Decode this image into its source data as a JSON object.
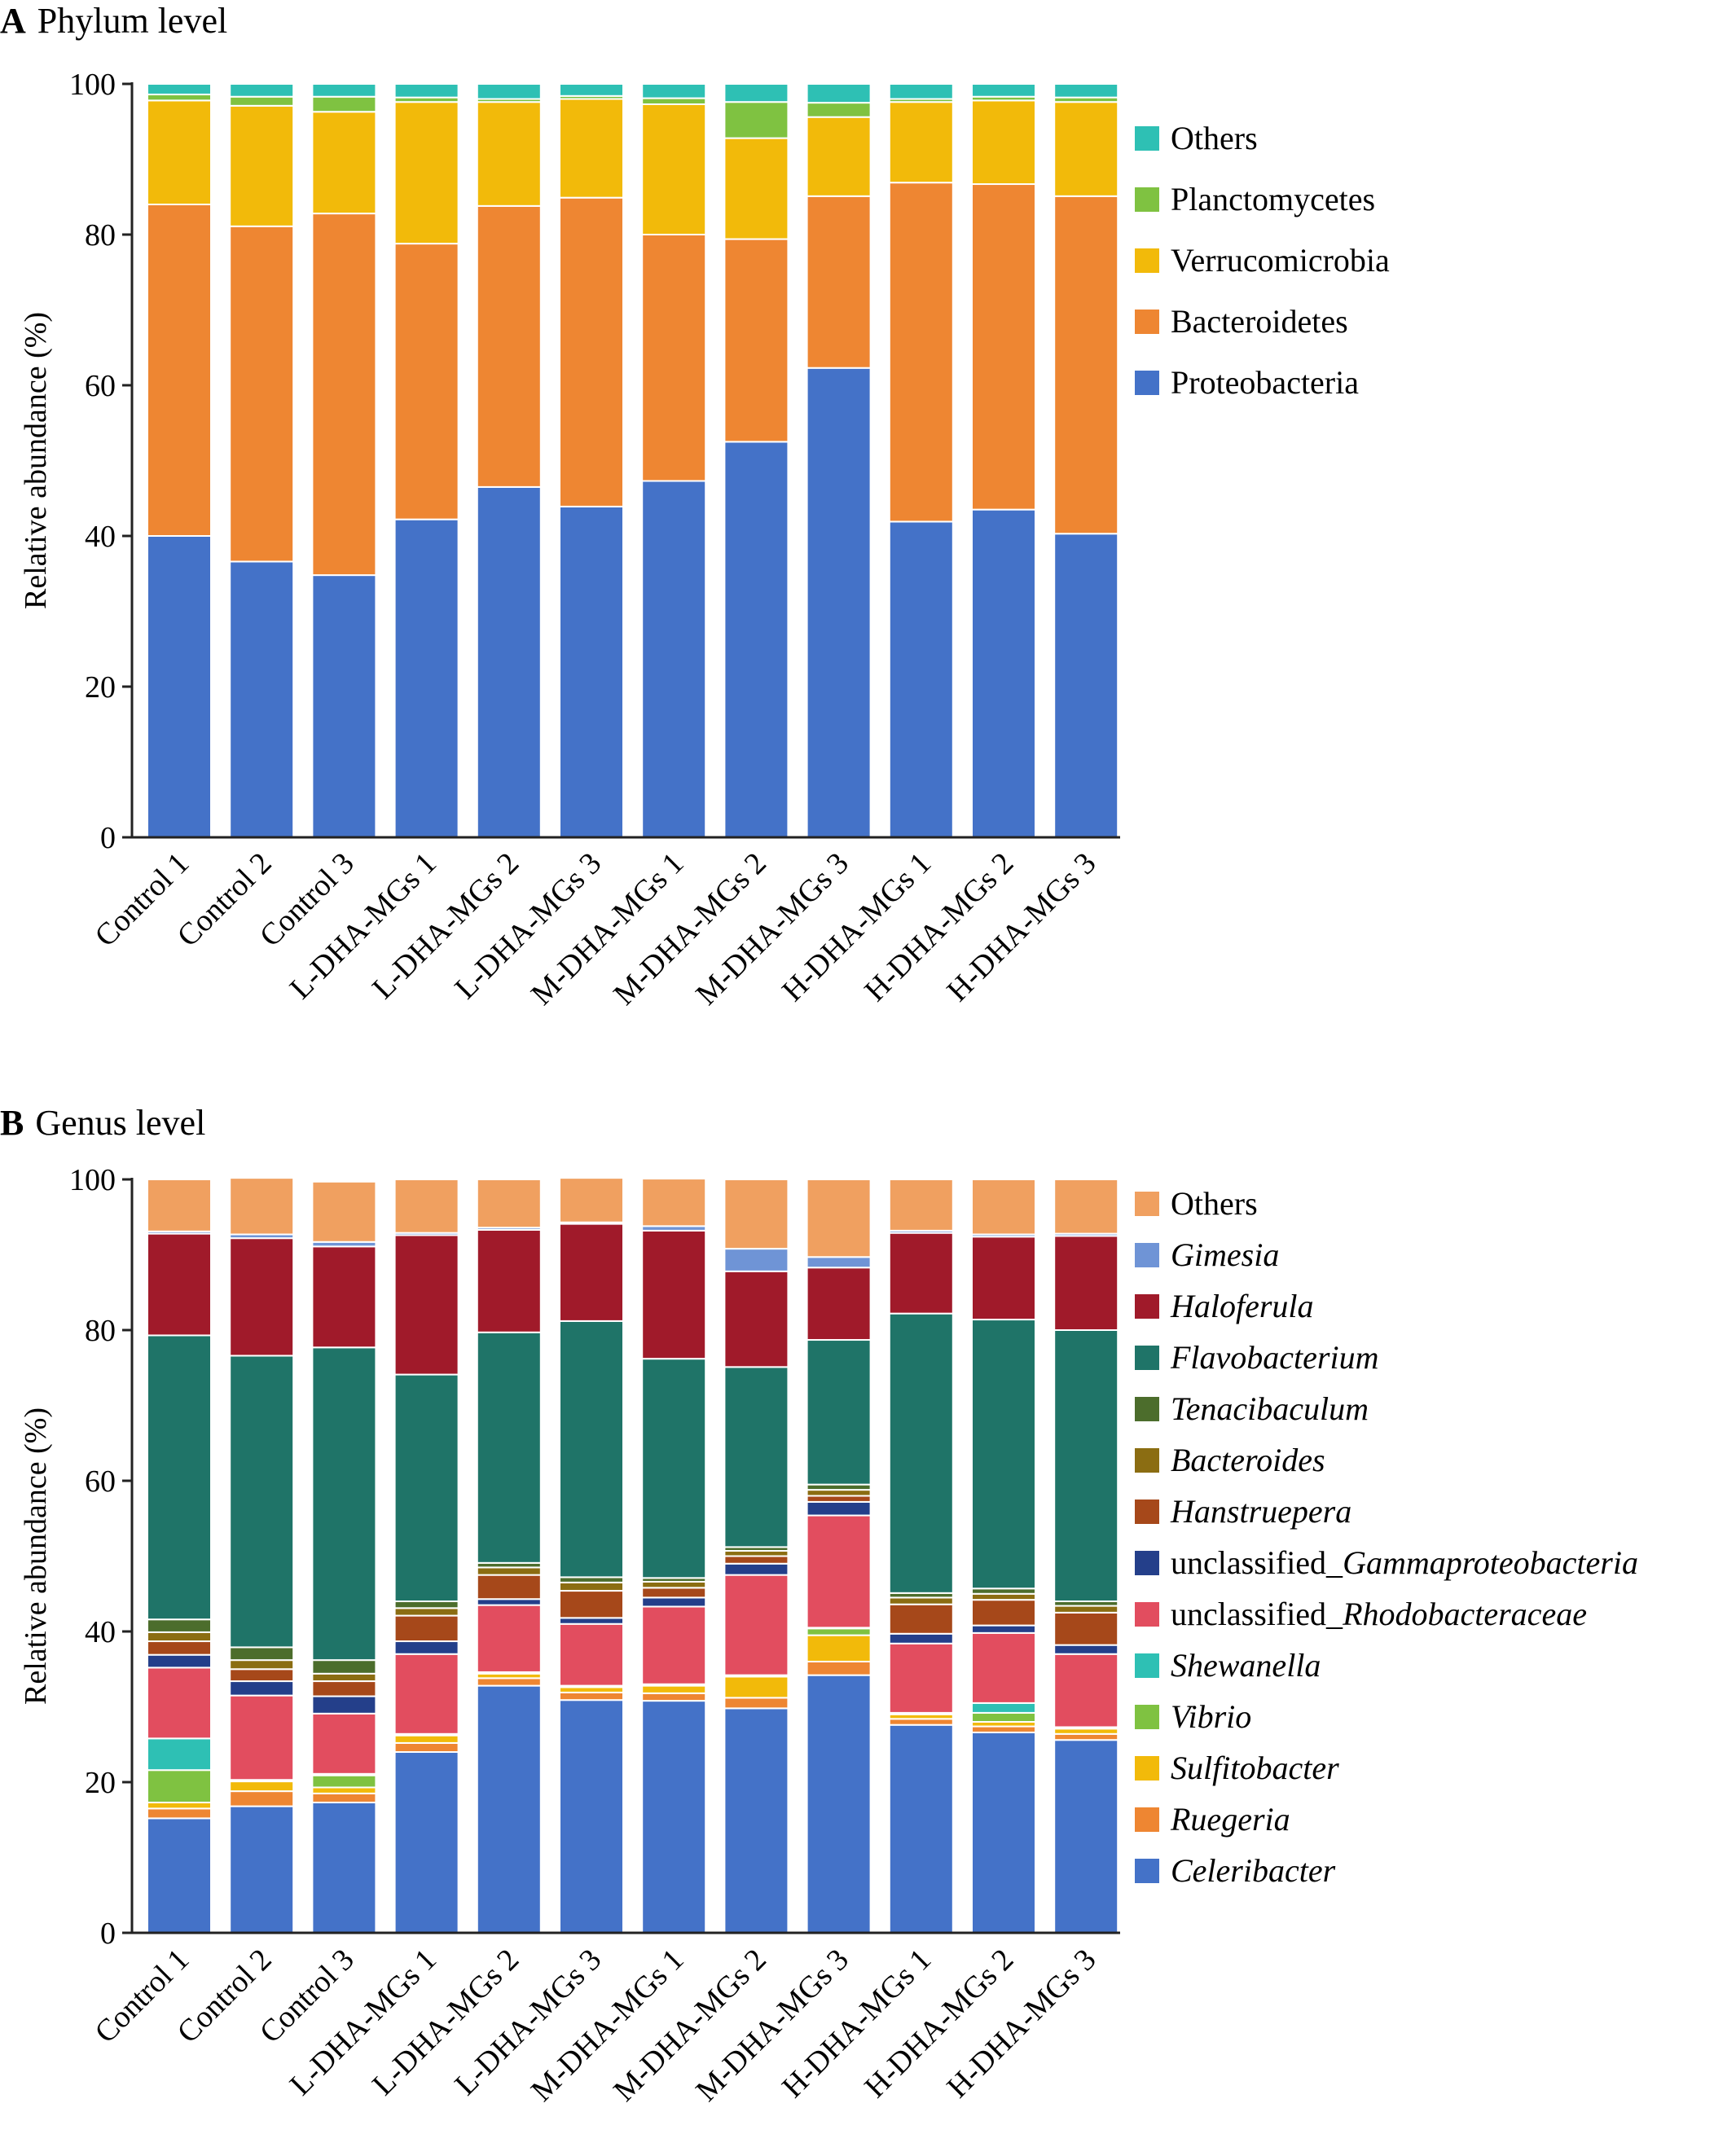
{
  "chart_data": [
    {
      "panel": "A",
      "type": "bar",
      "stacked": true,
      "title": "Phylum level",
      "xlabel": "",
      "ylabel": "Relative abundance (%)",
      "ylim": [
        0,
        100
      ],
      "yticks": [
        0,
        20,
        40,
        60,
        80,
        100
      ],
      "legend_position": "right",
      "categories": [
        "Control 1",
        "Control 2",
        "Control 3",
        "L-DHA-MGs 1",
        "L-DHA-MGs 2",
        "L-DHA-MGs 3",
        "M-DHA-MGs 1",
        "M-DHA-MGs 2",
        "M-DHA-MGs 3",
        "H-DHA-MGs 1",
        "H-DHA-MGs 2",
        "H-DHA-MGs 3"
      ],
      "series": [
        {
          "name": "Proteobacteria",
          "italic": false,
          "color": "#4472C8",
          "values": [
            40.0,
            36.6,
            34.8,
            42.2,
            46.5,
            43.9,
            47.3,
            52.5,
            62.3,
            41.9,
            43.5,
            40.3
          ]
        },
        {
          "name": "Bacteroidetes",
          "italic": false,
          "color": "#EE8632",
          "values": [
            44.0,
            44.5,
            48.0,
            36.6,
            37.3,
            41.0,
            32.7,
            26.9,
            22.8,
            45.0,
            43.2,
            44.8
          ]
        },
        {
          "name": "Verrucomicrobia",
          "italic": false,
          "color": "#F2BA0A",
          "values": [
            13.8,
            16.0,
            13.5,
            18.8,
            13.8,
            13.1,
            17.3,
            13.4,
            10.5,
            10.7,
            11.1,
            12.5
          ]
        },
        {
          "name": "Planctomycetes",
          "italic": false,
          "color": "#7FC241",
          "values": [
            0.8,
            1.2,
            2.0,
            0.6,
            0.4,
            0.4,
            0.8,
            4.8,
            1.9,
            0.4,
            0.5,
            0.6
          ]
        },
        {
          "name": "Others",
          "italic": false,
          "color": "#2EC0B4",
          "values": [
            1.4,
            1.7,
            1.7,
            1.8,
            2.0,
            1.6,
            1.9,
            2.4,
            2.5,
            2.0,
            1.7,
            1.8
          ]
        }
      ]
    },
    {
      "panel": "B",
      "type": "bar",
      "stacked": true,
      "title": "Genus level",
      "xlabel": "",
      "ylabel": "Relative abundance (%)",
      "ylim": [
        0,
        100
      ],
      "yticks": [
        0,
        20,
        40,
        60,
        80,
        100
      ],
      "legend_position": "right",
      "categories": [
        "Control 1",
        "Control 2",
        "Control 3",
        "L-DHA-MGs 1",
        "L-DHA-MGs 2",
        "L-DHA-MGs 3",
        "M-DHA-MGs 1",
        "M-DHA-MGs 2",
        "M-DHA-MGs 3",
        "H-DHA-MGs 1",
        "H-DHA-MGs 2",
        "H-DHA-MGs 3"
      ],
      "series": [
        {
          "name": "Celeribacter",
          "italic": true,
          "color": "#4472C8",
          "values": [
            15.2,
            16.8,
            17.3,
            24.0,
            32.8,
            30.9,
            30.8,
            29.8,
            34.2,
            27.6,
            26.6,
            25.6
          ]
        },
        {
          "name": "Ruegeria",
          "italic": false,
          "italic_name": true,
          "color": "#EE8632",
          "values": [
            1.3,
            2.0,
            1.2,
            1.2,
            1.0,
            1.0,
            1.0,
            1.4,
            1.8,
            0.8,
            0.8,
            0.8
          ]
        },
        {
          "name": "Sulfitobacter",
          "italic": true,
          "color": "#F2BA0A",
          "values": [
            0.8,
            1.3,
            0.8,
            1.0,
            0.6,
            0.7,
            1.0,
            2.8,
            3.5,
            0.6,
            0.6,
            0.7
          ]
        },
        {
          "name": "Vibrio",
          "italic": true,
          "color": "#7FC241",
          "values": [
            4.3,
            0.1,
            1.6,
            0.1,
            0.1,
            0.1,
            0.1,
            0.1,
            0.9,
            0.1,
            1.2,
            0.1
          ]
        },
        {
          "name": "Shewanella",
          "italic": true,
          "color": "#2EC0B4",
          "values": [
            4.2,
            0.1,
            0.2,
            0.1,
            0.1,
            0.1,
            0.1,
            0.1,
            0.1,
            0.1,
            1.3,
            0.1
          ]
        },
        {
          "name": "unclassified_Rhodobacteraceae",
          "prefix": "unclassified_",
          "italic_part": "Rhodobacteraceae",
          "color": "#E24D5F",
          "values": [
            9.4,
            11.2,
            8.0,
            10.6,
            8.9,
            8.2,
            10.3,
            13.3,
            14.9,
            9.2,
            9.3,
            9.7
          ]
        },
        {
          "name": "unclassified_Gammaproteobacteria",
          "prefix": "unclassified_",
          "italic_part": "Gammaproteobacteria",
          "color": "#243F8A",
          "values": [
            1.7,
            1.9,
            2.3,
            1.7,
            0.8,
            0.8,
            1.2,
            1.5,
            1.8,
            1.3,
            1.0,
            1.2
          ]
        },
        {
          "name": "Hanstruepera",
          "italic": true,
          "color": "#A6481A",
          "values": [
            1.8,
            1.6,
            2.0,
            3.4,
            3.2,
            3.6,
            1.3,
            1.0,
            0.8,
            3.9,
            3.4,
            4.3
          ]
        },
        {
          "name": "Bacteroides",
          "italic": true,
          "color": "#8B6D12",
          "values": [
            1.2,
            1.2,
            1.0,
            1.0,
            1.0,
            1.1,
            0.8,
            0.7,
            0.8,
            0.9,
            0.8,
            0.9
          ]
        },
        {
          "name": "Tenacibaculum",
          "italic": true,
          "color": "#4C6D2C",
          "values": [
            1.7,
            1.7,
            1.8,
            0.9,
            0.6,
            0.7,
            0.5,
            0.5,
            0.7,
            0.6,
            0.7,
            0.6
          ]
        },
        {
          "name": "Flavobacterium",
          "italic": true,
          "color": "#1F7468",
          "values": [
            37.7,
            38.7,
            41.5,
            30.1,
            30.6,
            34.0,
            29.1,
            23.9,
            19.2,
            37.1,
            35.7,
            36.0
          ]
        },
        {
          "name": "Haloferula",
          "italic": true,
          "color": "#A01A2A",
          "values": [
            13.5,
            15.6,
            13.4,
            18.5,
            13.6,
            12.9,
            17.0,
            12.7,
            9.6,
            10.7,
            11.0,
            12.5
          ]
        },
        {
          "name": "Gimesia",
          "italic": true,
          "color": "#6F94D6",
          "values": [
            0.3,
            0.5,
            0.6,
            0.3,
            0.3,
            0.2,
            0.6,
            3.0,
            1.4,
            0.3,
            0.3,
            0.3
          ]
        },
        {
          "name": "Others",
          "italic": false,
          "color": "#F0A060",
          "values": [
            6.9,
            7.5,
            8.0,
            7.1,
            6.4,
            5.9,
            6.3,
            9.2,
            10.3,
            6.8,
            7.3,
            7.2
          ]
        }
      ]
    }
  ]
}
